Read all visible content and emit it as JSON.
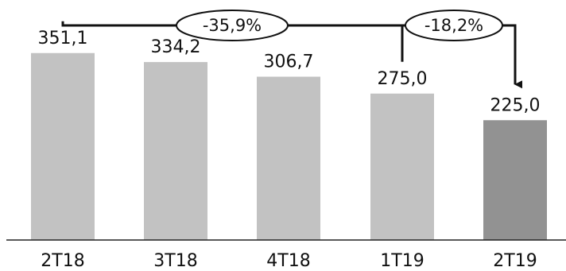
{
  "chart_data": {
    "type": "bar",
    "categories": [
      "2T18",
      "3T18",
      "4T18",
      "1T19",
      "2T19"
    ],
    "values": [
      351.1,
      334.2,
      306.7,
      275.0,
      225.0
    ],
    "value_labels": [
      "351,1",
      "334,2",
      "306,7",
      "275,0",
      "225,0"
    ],
    "title": "",
    "xlabel": "",
    "ylabel": "",
    "ylim": [
      0,
      400
    ],
    "grid": false,
    "colors": {
      "bar": "#c2c2c2",
      "bar_highlight": "#929292",
      "axis": "#222222",
      "annotation": "#111111"
    },
    "annotations": [
      {
        "label": "-35,9%",
        "from": "2T18",
        "to": "2T19"
      },
      {
        "label": "-18,2%",
        "from": "1T19",
        "to": "2T19"
      }
    ]
  }
}
